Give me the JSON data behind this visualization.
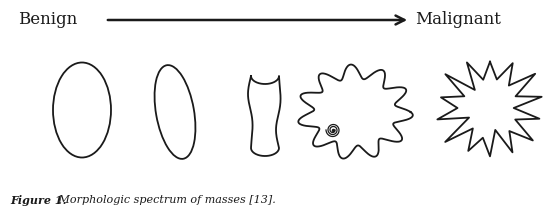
{
  "title_left": "Benign",
  "title_right": "Malignant",
  "caption_bold": "Figure 1.",
  "caption_italic": " Morphologic spectrum of masses [13].",
  "bg_color": "#ffffff",
  "line_color": "#1a1a1a",
  "figsize": [
    5.48,
    2.15
  ],
  "dpi": 100
}
